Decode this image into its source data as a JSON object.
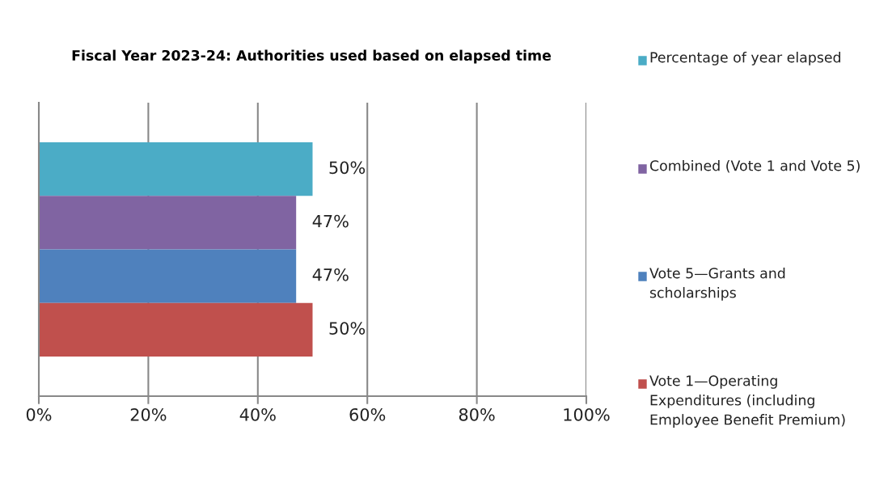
{
  "chart_data": {
    "type": "bar",
    "orientation": "horizontal",
    "title": "Fiscal Year 2023-24: Authorities used based on elapsed time",
    "categories": [
      null
    ],
    "series": [
      {
        "name": "Percentage of year elapsed",
        "color": "#4bacc6",
        "values": [
          50
        ],
        "value_labels": [
          "50%"
        ]
      },
      {
        "name": "Combined (Vote 1 and Vote 5)",
        "color": "#8064a2",
        "values": [
          47
        ],
        "value_labels": [
          "47%"
        ]
      },
      {
        "name": "Vote 5—Grants and scholarships",
        "color": "#4f81bd",
        "values": [
          47
        ],
        "value_labels": [
          "47%"
        ]
      },
      {
        "name": "Vote 1—Operating Expenditures (including Employee Benefit Premium)",
        "color": "#c0504d",
        "values": [
          50
        ],
        "value_labels": [
          "50%"
        ]
      }
    ],
    "xlim": [
      0,
      100
    ],
    "xticks": [
      {
        "value": 0,
        "label": "0%"
      },
      {
        "value": 20,
        "label": "20%"
      },
      {
        "value": 40,
        "label": "40%"
      },
      {
        "value": 60,
        "label": "60%"
      },
      {
        "value": 80,
        "label": "80%"
      },
      {
        "value": 100,
        "label": "100%"
      }
    ],
    "grid": "x",
    "legend": "right"
  }
}
